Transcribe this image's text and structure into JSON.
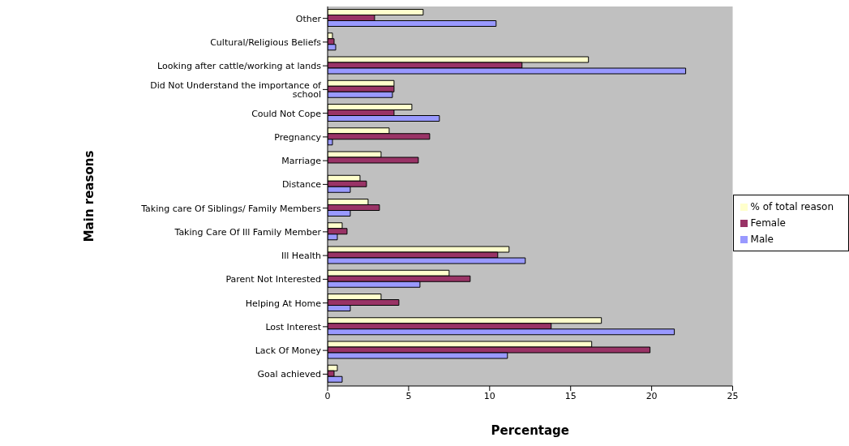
{
  "chart_data": {
    "type": "bar",
    "orientation": "horizontal",
    "xlabel": "Percentage",
    "ylabel": "Main reasons",
    "categories": [
      "Other",
      "Cultural/Religious Beliefs",
      "Looking after cattle/working at lands",
      "Did Not Understand the importance of school",
      "Could Not Cope",
      "Pregnancy",
      "Marriage",
      "Distance",
      "Taking care Of Siblings/ Family Members",
      "Taking Care Of Ill Family Member",
      "Ill Health",
      "Parent Not Interested",
      "Helping At Home",
      "Lost Interest",
      "Lack Of Money",
      "Goal achieved"
    ],
    "series": [
      {
        "name": "% of total reason",
        "color": "#ffffcc",
        "values": [
          5.9,
          0.3,
          16.1,
          4.1,
          5.2,
          3.8,
          3.3,
          2.0,
          2.5,
          0.9,
          11.2,
          7.5,
          3.3,
          16.9,
          16.3,
          0.6
        ]
      },
      {
        "name": "Female",
        "color": "#993366",
        "values": [
          2.9,
          0.4,
          12.0,
          4.1,
          4.1,
          6.3,
          5.6,
          2.4,
          3.2,
          1.2,
          10.5,
          8.8,
          4.4,
          13.8,
          19.9,
          0.4
        ]
      },
      {
        "name": "Male",
        "color": "#9999ff",
        "values": [
          10.4,
          0.5,
          22.1,
          4.0,
          6.9,
          0.3,
          0,
          1.4,
          1.4,
          0.6,
          12.2,
          5.7,
          1.4,
          21.4,
          11.1,
          0.9
        ]
      }
    ],
    "xlim": [
      0,
      25
    ],
    "xticks": [
      0,
      5,
      10,
      15,
      20,
      25
    ],
    "grid": false,
    "legend": "right"
  }
}
